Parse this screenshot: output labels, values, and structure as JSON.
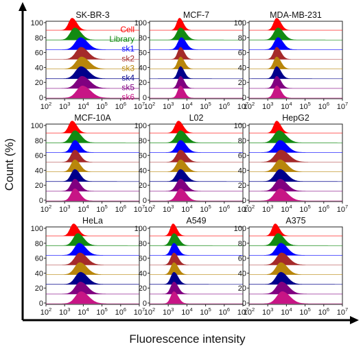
{
  "figure": {
    "xlabel": "Fluorescence intensity",
    "ylabel": "Count (%)"
  },
  "legend": {
    "entries": [
      {
        "label": "Cell",
        "color": "#ff0000"
      },
      {
        "label": "Library",
        "color": "#128a12"
      },
      {
        "label": "sk1",
        "color": "#0000ff"
      },
      {
        "label": "sk2",
        "color": "#a52a2a"
      },
      {
        "label": "sk3",
        "color": "#b8860b"
      },
      {
        "label": "sk4",
        "color": "#00008b"
      },
      {
        "label": "sk5",
        "color": "#800080"
      },
      {
        "label": "sk6",
        "color": "#c71585"
      }
    ]
  },
  "axis": {
    "y_ticks": [
      "100",
      "80",
      "60",
      "40",
      "20",
      "0"
    ],
    "x_ticks": [
      {
        "base": "10",
        "exp": "2"
      },
      {
        "base": "10",
        "exp": "3"
      },
      {
        "base": "10",
        "exp": "4"
      },
      {
        "base": "10",
        "exp": "5"
      },
      {
        "base": "10",
        "exp": "6"
      },
      {
        "base": "10",
        "exp": "7"
      }
    ]
  },
  "chart_data": [
    {
      "type": "area",
      "title": "SK-BR-3",
      "xscale": "log",
      "xlim": [
        100,
        10000000
      ],
      "ylim": [
        0,
        100
      ],
      "series": [
        {
          "name": "Cell",
          "color": "#ff0000",
          "peak": 2500,
          "width": 0.2
        },
        {
          "name": "Library",
          "color": "#128a12",
          "peak": 3500,
          "width": 0.26
        },
        {
          "name": "sk1",
          "color": "#0000ff",
          "peak": 7000,
          "width": 0.3
        },
        {
          "name": "sk2",
          "color": "#a52a2a",
          "peak": 7500,
          "width": 0.3
        },
        {
          "name": "sk3",
          "color": "#b8860b",
          "peak": 8000,
          "width": 0.32
        },
        {
          "name": "sk4",
          "color": "#00008b",
          "peak": 7500,
          "width": 0.32
        },
        {
          "name": "sk5",
          "color": "#800080",
          "peak": 8500,
          "width": 0.33
        },
        {
          "name": "sk6",
          "color": "#c71585",
          "peak": 9000,
          "width": 0.34
        }
      ]
    },
    {
      "type": "area",
      "title": "MCF-7",
      "xscale": "log",
      "xlim": [
        100,
        10000000
      ],
      "ylim": [
        0,
        100
      ],
      "series": [
        {
          "name": "Cell",
          "color": "#ff0000",
          "peak": 4000,
          "width": 0.16
        },
        {
          "name": "Library",
          "color": "#128a12",
          "peak": 4500,
          "width": 0.22
        },
        {
          "name": "sk1",
          "color": "#0000ff",
          "peak": 5000,
          "width": 0.2
        },
        {
          "name": "sk2",
          "color": "#a52a2a",
          "peak": 4500,
          "width": 0.16
        },
        {
          "name": "sk3",
          "color": "#b8860b",
          "peak": 4500,
          "width": 0.17
        },
        {
          "name": "sk4",
          "color": "#00008b",
          "peak": 4500,
          "width": 0.16
        },
        {
          "name": "sk5",
          "color": "#800080",
          "peak": 4500,
          "width": 0.16
        },
        {
          "name": "sk6",
          "color": "#c71585",
          "peak": 4500,
          "width": 0.16
        }
      ]
    },
    {
      "type": "area",
      "title": "MDA-MB-231",
      "xscale": "log",
      "xlim": [
        100,
        10000000
      ],
      "ylim": [
        0,
        100
      ],
      "series": [
        {
          "name": "Cell",
          "color": "#ff0000",
          "peak": 3000,
          "width": 0.18
        },
        {
          "name": "Library",
          "color": "#128a12",
          "peak": 3500,
          "width": 0.24
        },
        {
          "name": "sk1",
          "color": "#0000ff",
          "peak": 3500,
          "width": 0.22
        },
        {
          "name": "sk2",
          "color": "#a52a2a",
          "peak": 3000,
          "width": 0.18
        },
        {
          "name": "sk3",
          "color": "#b8860b",
          "peak": 3000,
          "width": 0.18
        },
        {
          "name": "sk4",
          "color": "#00008b",
          "peak": 3000,
          "width": 0.18
        },
        {
          "name": "sk5",
          "color": "#800080",
          "peak": 3000,
          "width": 0.18
        },
        {
          "name": "sk6",
          "color": "#c71585",
          "peak": 3000,
          "width": 0.18
        }
      ]
    },
    {
      "type": "area",
      "title": "MCF-10A",
      "xscale": "log",
      "xlim": [
        100,
        10000000
      ],
      "ylim": [
        0,
        100
      ],
      "series": [
        {
          "name": "Cell",
          "color": "#ff0000",
          "peak": 2500,
          "width": 0.2
        },
        {
          "name": "Library",
          "color": "#128a12",
          "peak": 3500,
          "width": 0.26
        },
        {
          "name": "sk1",
          "color": "#0000ff",
          "peak": 3500,
          "width": 0.22
        },
        {
          "name": "sk2",
          "color": "#a52a2a",
          "peak": 3500,
          "width": 0.22
        },
        {
          "name": "sk3",
          "color": "#b8860b",
          "peak": 3500,
          "width": 0.22
        },
        {
          "name": "sk4",
          "color": "#00008b",
          "peak": 3500,
          "width": 0.22
        },
        {
          "name": "sk5",
          "color": "#800080",
          "peak": 3500,
          "width": 0.22
        },
        {
          "name": "sk6",
          "color": "#c71585",
          "peak": 3500,
          "width": 0.22
        }
      ]
    },
    {
      "type": "area",
      "title": "L02",
      "xscale": "log",
      "xlim": [
        100,
        10000000
      ],
      "ylim": [
        0,
        100
      ],
      "series": [
        {
          "name": "Cell",
          "color": "#ff0000",
          "peak": 3500,
          "width": 0.2
        },
        {
          "name": "Library",
          "color": "#128a12",
          "peak": 4500,
          "width": 0.26
        },
        {
          "name": "sk1",
          "color": "#0000ff",
          "peak": 4500,
          "width": 0.24
        },
        {
          "name": "sk2",
          "color": "#a52a2a",
          "peak": 4500,
          "width": 0.24
        },
        {
          "name": "sk3",
          "color": "#b8860b",
          "peak": 4500,
          "width": 0.24
        },
        {
          "name": "sk4",
          "color": "#00008b",
          "peak": 4500,
          "width": 0.24
        },
        {
          "name": "sk5",
          "color": "#800080",
          "peak": 4500,
          "width": 0.24
        },
        {
          "name": "sk6",
          "color": "#c71585",
          "peak": 4500,
          "width": 0.24
        }
      ]
    },
    {
      "type": "area",
      "title": "HepG2",
      "xscale": "log",
      "xlim": [
        100,
        10000000
      ],
      "ylim": [
        0,
        100
      ],
      "series": [
        {
          "name": "Cell",
          "color": "#ff0000",
          "peak": 3000,
          "width": 0.18
        },
        {
          "name": "Library",
          "color": "#128a12",
          "peak": 4000,
          "width": 0.3
        },
        {
          "name": "sk1",
          "color": "#0000ff",
          "peak": 4500,
          "width": 0.3
        },
        {
          "name": "sk2",
          "color": "#a52a2a",
          "peak": 5000,
          "width": 0.34
        },
        {
          "name": "sk3",
          "color": "#b8860b",
          "peak": 4500,
          "width": 0.3
        },
        {
          "name": "sk4",
          "color": "#00008b",
          "peak": 4500,
          "width": 0.3
        },
        {
          "name": "sk5",
          "color": "#800080",
          "peak": 4500,
          "width": 0.3
        },
        {
          "name": "sk6",
          "color": "#c71585",
          "peak": 4500,
          "width": 0.32
        }
      ]
    },
    {
      "type": "area",
      "title": "HeLa",
      "xscale": "log",
      "xlim": [
        100,
        10000000
      ],
      "ylim": [
        0,
        100
      ],
      "series": [
        {
          "name": "Cell",
          "color": "#ff0000",
          "peak": 3000,
          "width": 0.2
        },
        {
          "name": "Library",
          "color": "#128a12",
          "peak": 5000,
          "width": 0.26
        },
        {
          "name": "sk1",
          "color": "#0000ff",
          "peak": 6000,
          "width": 0.28
        },
        {
          "name": "sk2",
          "color": "#a52a2a",
          "peak": 6500,
          "width": 0.3
        },
        {
          "name": "sk3",
          "color": "#b8860b",
          "peak": 6500,
          "width": 0.3
        },
        {
          "name": "sk4",
          "color": "#00008b",
          "peak": 7000,
          "width": 0.3
        },
        {
          "name": "sk5",
          "color": "#800080",
          "peak": 7000,
          "width": 0.3
        },
        {
          "name": "sk6",
          "color": "#c71585",
          "peak": 7500,
          "width": 0.32
        }
      ]
    },
    {
      "type": "area",
      "title": "A549",
      "xscale": "log",
      "xlim": [
        100,
        10000000
      ],
      "ylim": [
        0,
        100
      ],
      "series": [
        {
          "name": "Cell",
          "color": "#ff0000",
          "peak": 1800,
          "width": 0.16
        },
        {
          "name": "Library",
          "color": "#128a12",
          "peak": 2000,
          "width": 0.2
        },
        {
          "name": "sk1",
          "color": "#0000ff",
          "peak": 2000,
          "width": 0.18
        },
        {
          "name": "sk2",
          "color": "#a52a2a",
          "peak": 2000,
          "width": 0.18
        },
        {
          "name": "sk3",
          "color": "#b8860b",
          "peak": 2000,
          "width": 0.18
        },
        {
          "name": "sk4",
          "color": "#00008b",
          "peak": 2000,
          "width": 0.18
        },
        {
          "name": "sk5",
          "color": "#800080",
          "peak": 2000,
          "width": 0.18
        },
        {
          "name": "sk6",
          "color": "#c71585",
          "peak": 2000,
          "width": 0.18
        }
      ]
    },
    {
      "type": "area",
      "title": "A375",
      "xscale": "log",
      "xlim": [
        100,
        10000000
      ],
      "ylim": [
        0,
        100
      ],
      "series": [
        {
          "name": "Cell",
          "color": "#ff0000",
          "peak": 2500,
          "width": 0.18
        },
        {
          "name": "Library",
          "color": "#128a12",
          "peak": 3500,
          "width": 0.26
        },
        {
          "name": "sk1",
          "color": "#0000ff",
          "peak": 5000,
          "width": 0.28
        },
        {
          "name": "sk2",
          "color": "#a52a2a",
          "peak": 5500,
          "width": 0.3
        },
        {
          "name": "sk3",
          "color": "#b8860b",
          "peak": 5000,
          "width": 0.28
        },
        {
          "name": "sk4",
          "color": "#00008b",
          "peak": 5000,
          "width": 0.28
        },
        {
          "name": "sk5",
          "color": "#800080",
          "peak": 5500,
          "width": 0.3
        },
        {
          "name": "sk6",
          "color": "#c71585",
          "peak": 6000,
          "width": 0.32
        }
      ]
    }
  ]
}
